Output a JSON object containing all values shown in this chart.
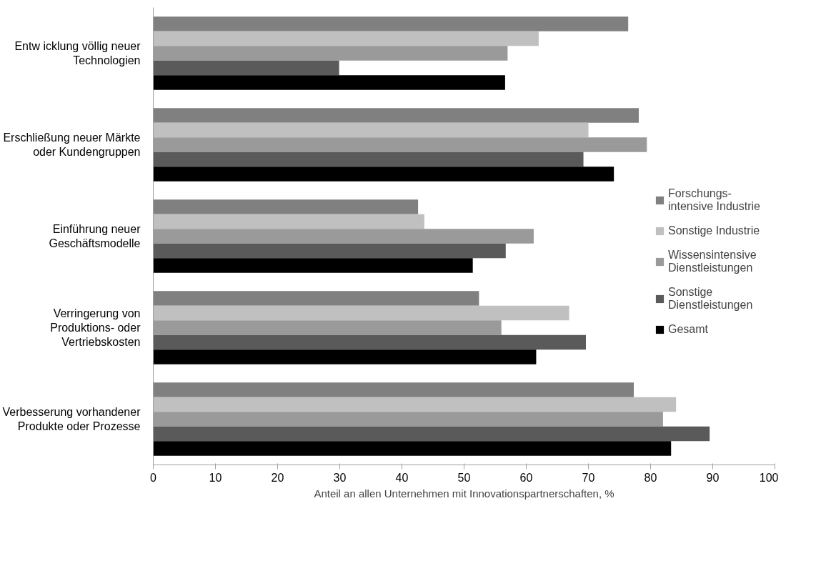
{
  "chart_data": {
    "type": "bar",
    "orientation": "horizontal",
    "xlabel": "Anteil an allen Unternehmen mit Innovationspartnerschaften, %",
    "categories": [
      "Entw icklung völlig neuer\nTechnologien",
      "Erschließung neuer Märkte\noder Kundengruppen",
      "Einführung neuer\nGeschäftsmodelle",
      "Verringerung von\nProduktions- oder\nVertriebskosten",
      "Verbesserung vorhandener\nProdukte oder Prozesse"
    ],
    "series": [
      {
        "name": "Forschungs-\nintensive Industrie",
        "color": "#808080",
        "values": [
          76.4,
          78.1,
          42.6,
          52.4,
          77.3
        ]
      },
      {
        "name": "Sonstige Industrie",
        "color": "#c0c0c0",
        "values": [
          62.0,
          70.0,
          43.6,
          66.9,
          84.1
        ]
      },
      {
        "name": "Wissensintensive\nDienstleistungen",
        "color": "#9a9a9a",
        "values": [
          57.0,
          79.4,
          61.2,
          56.0,
          82.0
        ]
      },
      {
        "name": "Sonstige\nDienstleistungen",
        "color": "#5a5a5a",
        "values": [
          29.9,
          69.2,
          56.7,
          69.6,
          89.5
        ]
      },
      {
        "name": "Gesamt",
        "color": "#000000",
        "values": [
          56.6,
          74.1,
          51.4,
          61.6,
          83.3
        ]
      }
    ],
    "xlim": [
      0,
      100
    ],
    "xticks": [
      0,
      10,
      20,
      30,
      40,
      50,
      60,
      70,
      80,
      90,
      100
    ],
    "grid": false,
    "legend": "right"
  }
}
